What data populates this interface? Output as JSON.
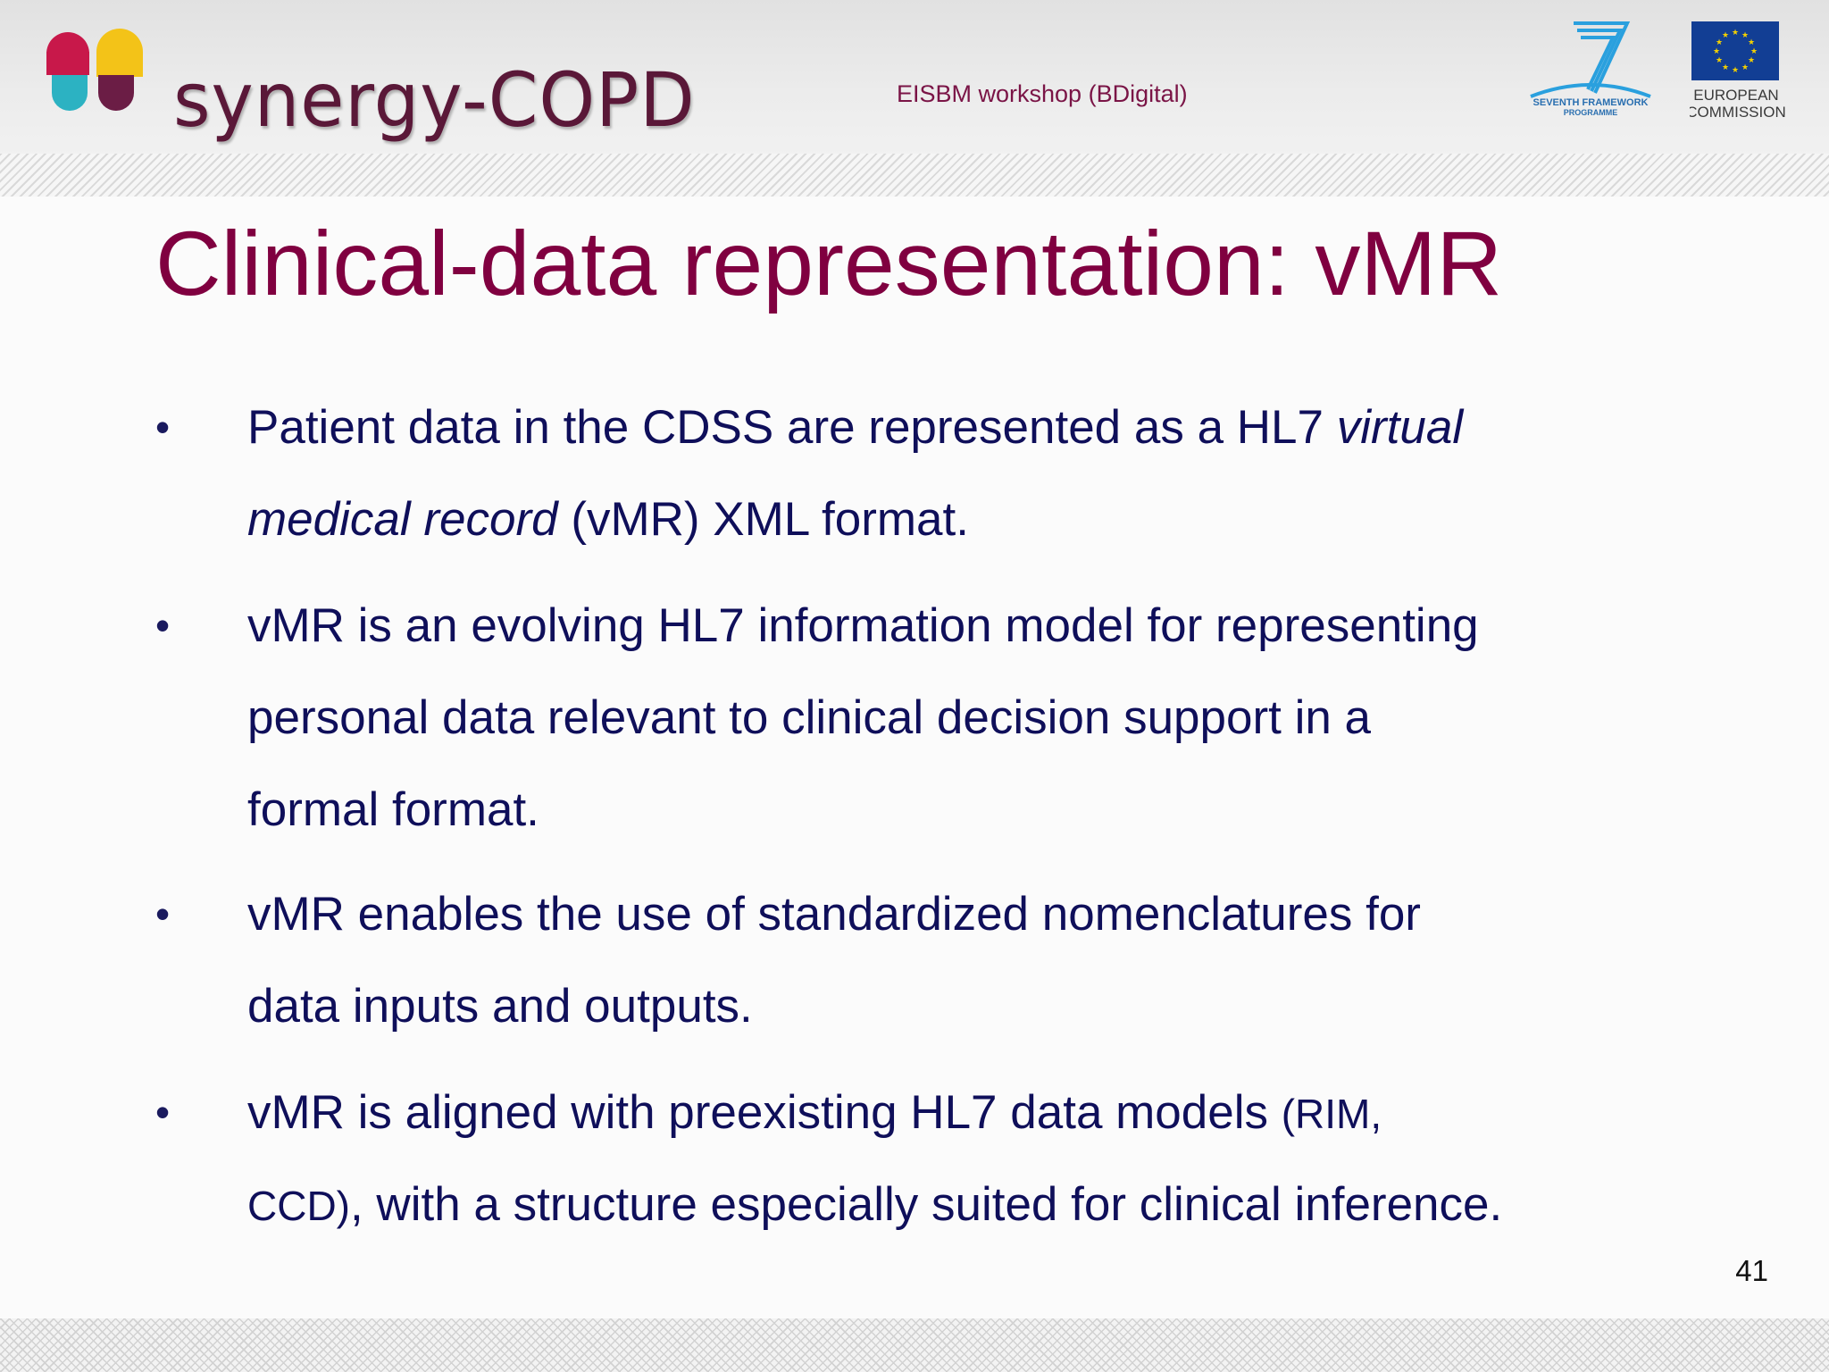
{
  "header": {
    "logo_text": "synergy-COPD",
    "workshop": "EISBM workshop (BDigital)",
    "fp7_logo_text": [
      "SEVENTH FRAMEWORK",
      "PROGRAMME"
    ],
    "eu_logo_text": [
      "EUROPEAN",
      "COMMISSION"
    ]
  },
  "slide": {
    "title": "Clinical-data representation: vMR",
    "page_number": "41",
    "bullet_symbol": "•",
    "bullets": [
      {
        "line1_a": "Patient data in the CDSS are represented as a HL7 ",
        "line1_b": "virtual",
        "line2_a": "medical record",
        "line2_b": " (vMR)  XML format."
      },
      {
        "line1": "vMR is an evolving HL7 information model for representing",
        "line2": "personal data relevant  to clinical decision support in a",
        "line3": "formal format."
      },
      {
        "line1": "vMR enables the use of standardized nomenclatures for",
        "line2": "data inputs and outputs."
      },
      {
        "line1_a": "vMR is aligned with preexisting  HL7 data models ",
        "line1_b": "(RIM,",
        "line2_a": "CCD)",
        "line2_b": ", with a structure especially suited for clinical inference."
      }
    ]
  },
  "colors": {
    "title": "#800040",
    "body_text": "#0f0f5a",
    "workshop": "#7a1446",
    "logo_red": "#c8184a",
    "logo_yellow": "#f3c318",
    "logo_teal": "#2cb2c2",
    "logo_plum": "#6b1d45",
    "fp7_blue": "#2aa0de",
    "eu_blue": "#123e94"
  }
}
